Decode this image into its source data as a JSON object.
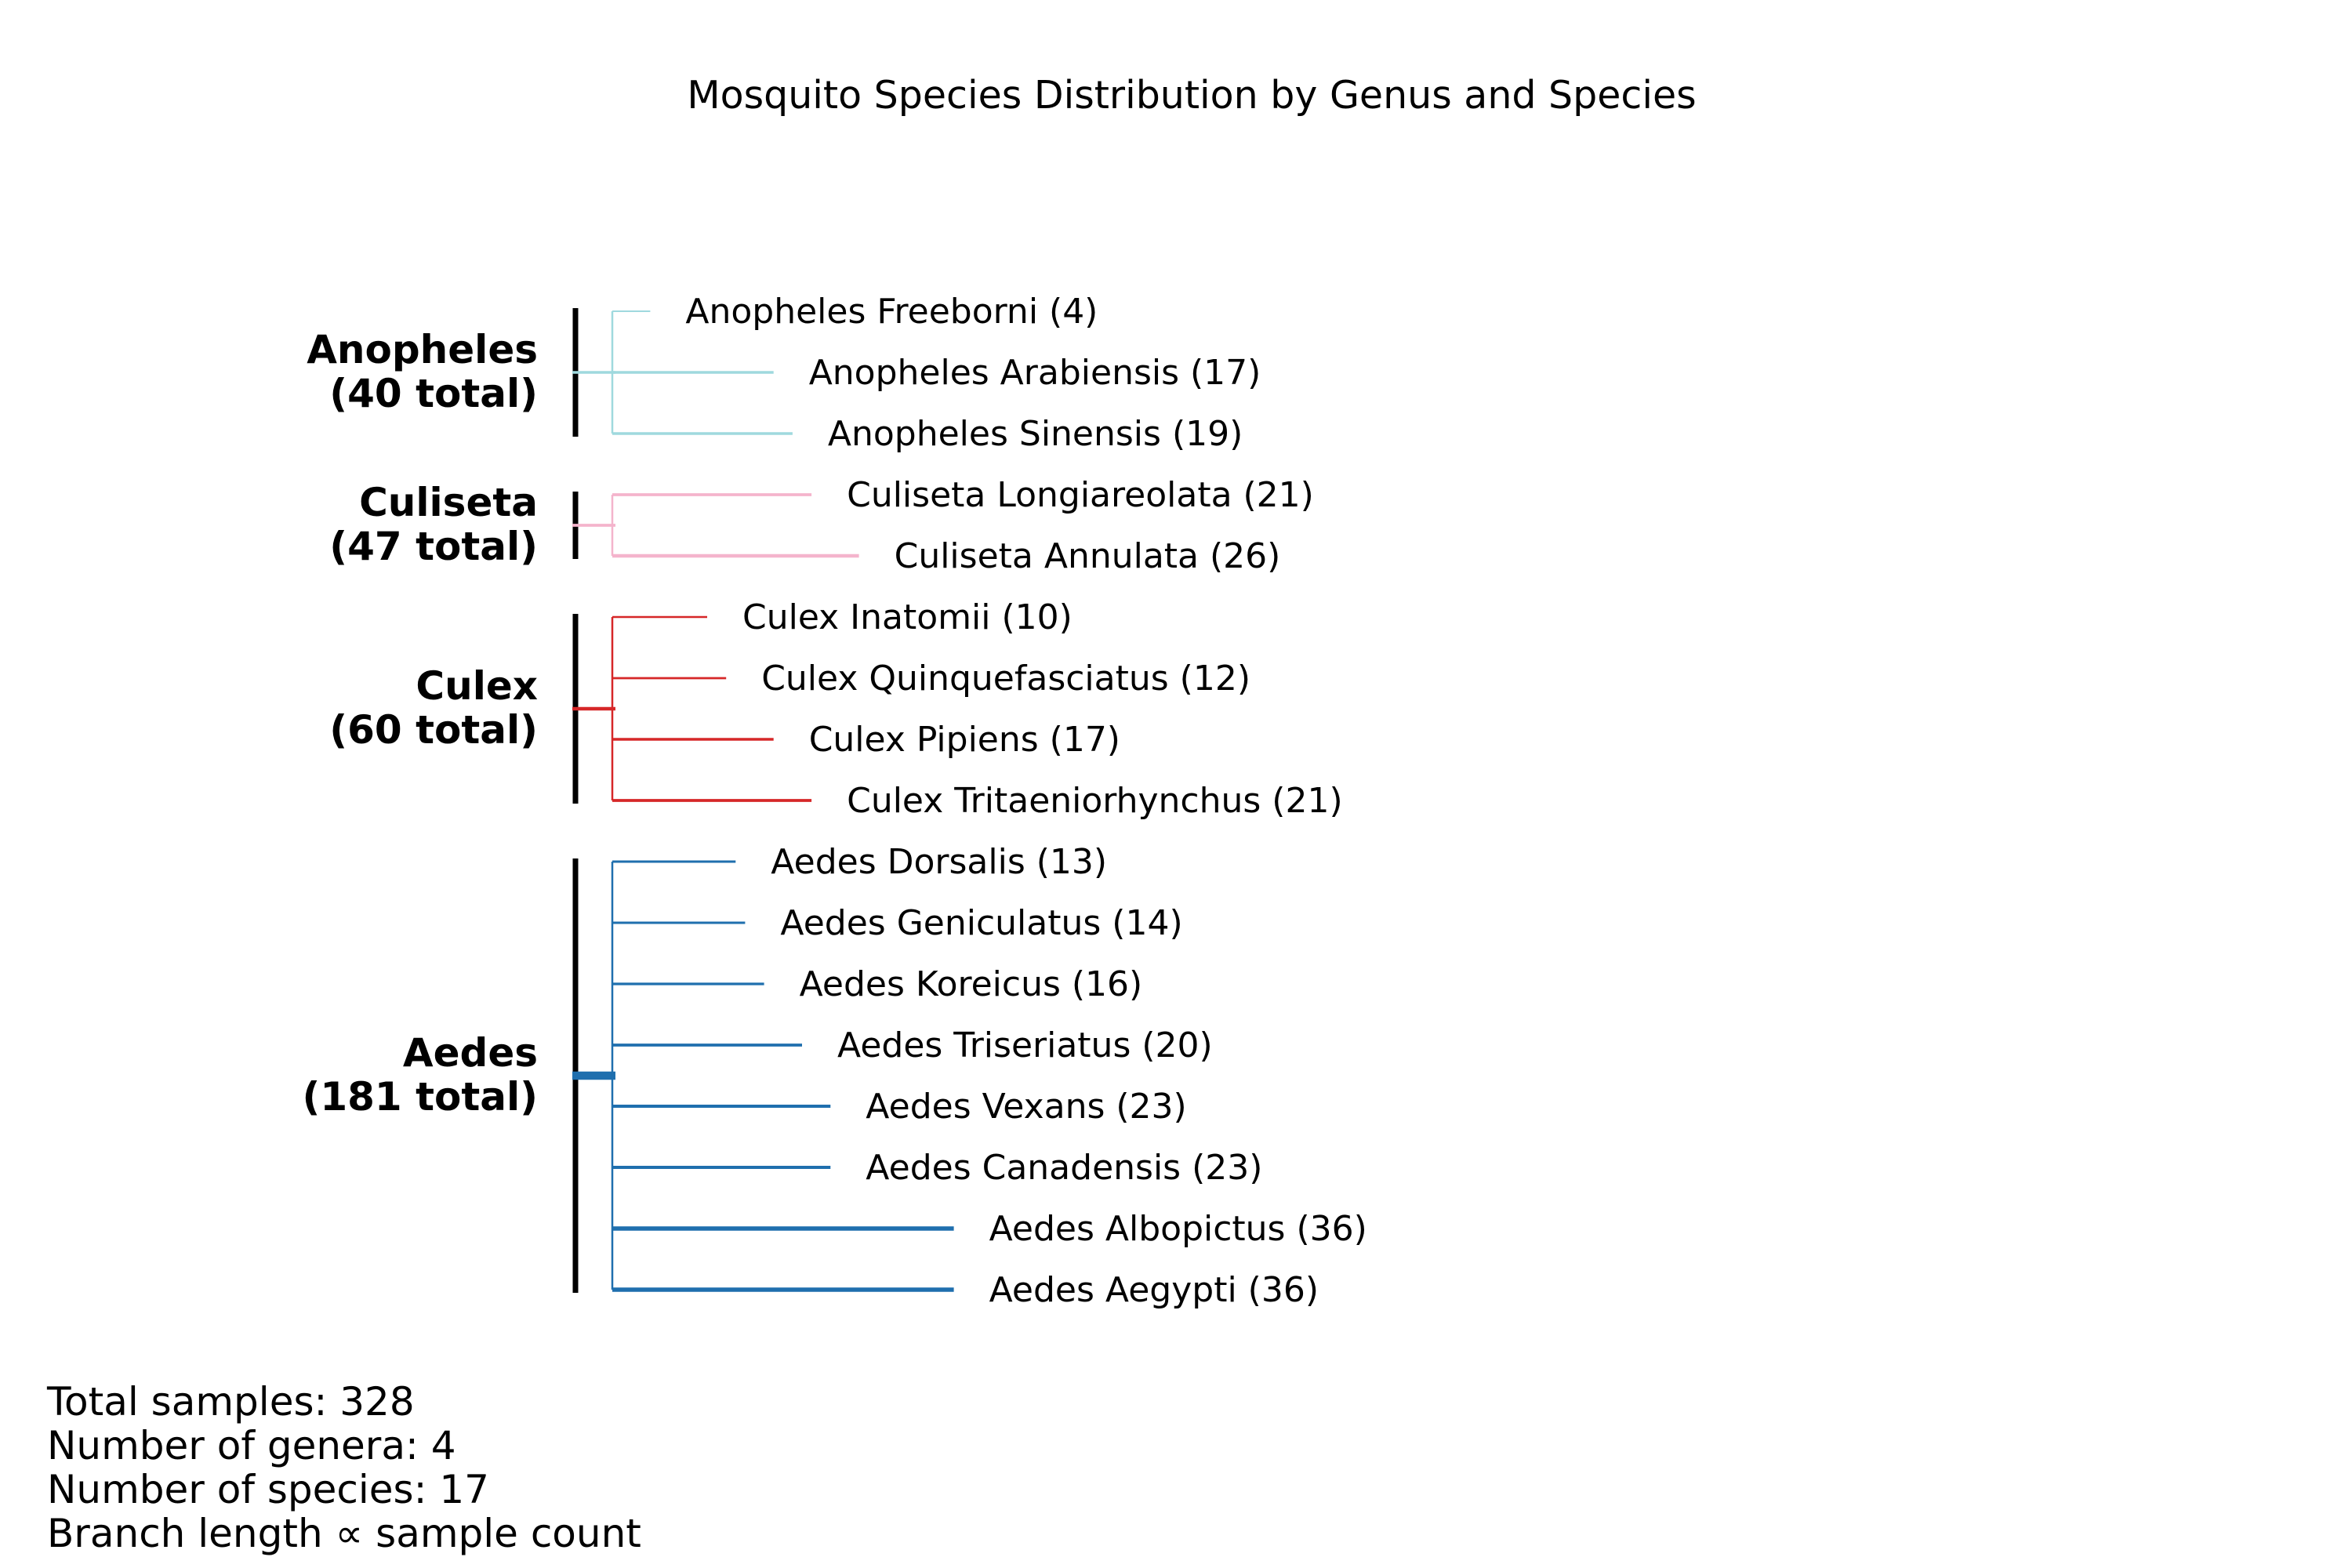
{
  "title": "Mosquito Species Distribution by Genus and Species",
  "chart_data": {
    "type": "tree",
    "genera": [
      {
        "name": "Anopheles",
        "total_label": "(40 total)",
        "total": 40,
        "color": "#9fd9de",
        "species": [
          {
            "label": "Anopheles Freeborni (4)",
            "count": 4
          },
          {
            "label": "Anopheles Arabiensis (17)",
            "count": 17
          },
          {
            "label": "Anopheles Sinensis (19)",
            "count": 19
          }
        ]
      },
      {
        "name": "Culiseta",
        "total_label": "(47 total)",
        "total": 47,
        "color": "#f4b4cc",
        "species": [
          {
            "label": "Culiseta Longiareolata (21)",
            "count": 21
          },
          {
            "label": "Culiseta Annulata (26)",
            "count": 26
          }
        ]
      },
      {
        "name": "Culex",
        "total_label": "(60 total)",
        "total": 60,
        "color": "#d62728",
        "species": [
          {
            "label": "Culex Inatomii (10)",
            "count": 10
          },
          {
            "label": "Culex Quinquefasciatus (12)",
            "count": 12
          },
          {
            "label": "Culex Pipiens (17)",
            "count": 17
          },
          {
            "label": "Culex Tritaeniorhynchus (21)",
            "count": 21
          }
        ]
      },
      {
        "name": "Aedes",
        "total_label": "(181 total)",
        "total": 181,
        "color": "#1f6fae",
        "species": [
          {
            "label": "Aedes Dorsalis (13)",
            "count": 13
          },
          {
            "label": "Aedes Geniculatus (14)",
            "count": 14
          },
          {
            "label": "Aedes Koreicus (16)",
            "count": 16
          },
          {
            "label": "Aedes Triseriatus (20)",
            "count": 20
          },
          {
            "label": "Aedes Vexans (23)",
            "count": 23
          },
          {
            "label": "Aedes Canadensis (23)",
            "count": 23
          },
          {
            "label": "Aedes Albopictus (36)",
            "count": 36
          },
          {
            "label": "Aedes Aegypti (36)",
            "count": 36
          }
        ]
      }
    ]
  },
  "stats": [
    "Total samples: 328",
    "Number of genera: 4",
    "Number of species: 17",
    "Branch length ∝ sample count"
  ]
}
